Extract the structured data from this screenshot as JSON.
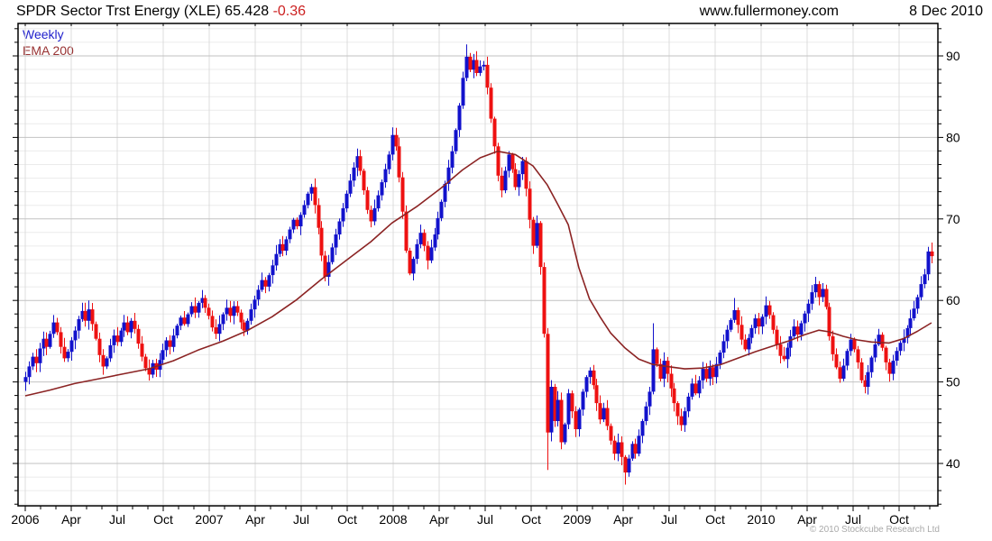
{
  "header": {
    "title_main": "SPDR Sector Trst Energy (XLE) 65.428",
    "change": "-0.36",
    "site": "www.fullermoney.com",
    "date": "8 Dec 2010"
  },
  "legend": {
    "series": "Weekly",
    "overlay": "EMA 200"
  },
  "footer": {
    "copyright": "© 2010 Stockcube Research Ltd"
  },
  "colors": {
    "up": "#1212cc",
    "down": "#ee1111",
    "ema": "#8b2323",
    "grid_minor": "#ebebeb",
    "grid_major": "#c2c2c2",
    "grid_vert": "#dcdcdc",
    "axis": "#000000",
    "label": "#000000",
    "change_text": "#cc2222",
    "copyright_text": "#aaaaaa"
  },
  "chart_data": {
    "type": "candlestick",
    "title": "SPDR Sector Trst Energy (XLE)",
    "timeframe": "Weekly",
    "overlay": "EMA 200",
    "last_price": 65.428,
    "change": -0.36,
    "date": "8 Dec 2010",
    "ylim": [
      34.8,
      93.98
    ],
    "y_ticks": [
      40,
      50,
      60,
      70,
      80,
      90
    ],
    "y_minor_step": 1.6667,
    "x_labels": [
      "2006",
      "Apr",
      "Jul",
      "Oct",
      "2007",
      "Apr",
      "Jul",
      "Oct",
      "2008",
      "Apr",
      "Jul",
      "Oct",
      "2009",
      "Apr",
      "Jul",
      "Oct",
      "2010",
      "Apr",
      "Jul",
      "Oct"
    ],
    "weeks_per_quarter": 13.0435,
    "weeks_per_month": 4.3478,
    "first_open": 50.0,
    "closes": [
      50.6,
      51.9,
      53.1,
      52.3,
      54.1,
      55.3,
      54.3,
      55.9,
      57.3,
      56.1,
      54.3,
      52.9,
      53.7,
      55.1,
      56.3,
      57.7,
      58.7,
      57.5,
      58.9,
      57.1,
      55.3,
      53.3,
      51.9,
      52.9,
      54.5,
      55.7,
      54.9,
      56.3,
      57.3,
      56.1,
      57.5,
      56.5,
      54.7,
      53.1,
      51.7,
      50.9,
      52.3,
      51.5,
      52.7,
      53.9,
      55.1,
      54.3,
      55.7,
      56.9,
      57.9,
      57.1,
      58.3,
      59.3,
      58.5,
      59.7,
      60.3,
      59.1,
      58.1,
      56.7,
      55.9,
      57.1,
      58.3,
      59.1,
      58.1,
      59.3,
      58.5,
      57.3,
      56.3,
      57.5,
      58.9,
      60.1,
      61.3,
      62.5,
      61.7,
      63.1,
      64.3,
      65.7,
      66.9,
      66.1,
      67.5,
      68.7,
      69.9,
      69.1,
      70.5,
      71.7,
      73.1,
      73.9,
      71.7,
      68.9,
      65.5,
      62.9,
      64.7,
      66.5,
      68.1,
      69.7,
      71.3,
      73.1,
      74.7,
      76.3,
      77.7,
      75.9,
      73.5,
      71.1,
      69.7,
      71.3,
      72.9,
      74.5,
      76.1,
      77.9,
      80.3,
      78.9,
      75.1,
      70.9,
      66.1,
      63.3,
      65.1,
      66.9,
      68.3,
      66.7,
      64.9,
      66.5,
      68.1,
      70.1,
      72.1,
      74.3,
      76.3,
      78.3,
      80.9,
      83.9,
      87.3,
      89.9,
      88.3,
      89.5,
      87.9,
      88.7,
      88.9,
      86.1,
      82.3,
      78.9,
      75.3,
      73.5,
      75.9,
      77.9,
      76.1,
      73.9,
      75.5,
      77.1,
      73.7,
      69.9,
      66.7,
      69.5,
      64.1,
      55.9,
      43.8,
      49.4,
      45.2,
      47.8,
      42.6,
      44.8,
      48.6,
      46.4,
      44.2,
      46.6,
      48.8,
      50.6,
      51.4,
      49.6,
      47.4,
      45.4,
      46.8,
      44.6,
      42.8,
      41.2,
      42.6,
      40.8,
      38.9,
      40.6,
      42.4,
      41.2,
      43.4,
      45.2,
      47.0,
      48.8,
      54.0,
      52.2,
      50.4,
      52.6,
      51.0,
      49.2,
      47.4,
      45.8,
      44.7,
      46.4,
      48.2,
      49.8,
      48.6,
      50.2,
      51.6,
      50.4,
      51.8,
      50.6,
      52.2,
      53.6,
      55.0,
      56.4,
      57.6,
      58.8,
      57.0,
      55.2,
      54.0,
      55.4,
      56.6,
      57.8,
      56.8,
      58.0,
      59.4,
      58.2,
      56.4,
      54.6,
      53.2,
      52.8,
      54.2,
      55.6,
      56.8,
      55.8,
      57.2,
      58.4,
      59.6,
      61.0,
      62.0,
      60.4,
      61.4,
      59.2,
      55.6,
      53.4,
      51.8,
      50.4,
      52.0,
      53.8,
      55.2,
      54.0,
      52.4,
      50.2,
      49.4,
      51.2,
      53.0,
      54.6,
      55.8,
      54.2,
      52.4,
      51.0,
      52.6,
      53.8,
      54.8,
      55.4,
      56.6,
      57.8,
      59.0,
      60.4,
      62.0,
      63.2,
      66.0,
      65.43
    ],
    "wick_overrides": {
      "125": {
        "high": 91.4
      },
      "148": {
        "low": 39.2
      },
      "170": {
        "low": 37.4
      },
      "178": {
        "high": 57.2
      },
      "201": {
        "high": 60.3
      },
      "210": {
        "high": 60.5
      },
      "224": {
        "high": 62.9
      },
      "231": {
        "low": 49.9
      },
      "238": {
        "low": 48.6
      },
      "257": {
        "high": 67.1
      }
    },
    "ema_points": [
      [
        0,
        48.3
      ],
      [
        7,
        49.0
      ],
      [
        14,
        49.8
      ],
      [
        21,
        50.4
      ],
      [
        28,
        51.0
      ],
      [
        35,
        51.6
      ],
      [
        42,
        52.6
      ],
      [
        49,
        53.9
      ],
      [
        56,
        55.0
      ],
      [
        63,
        56.3
      ],
      [
        70,
        58.0
      ],
      [
        77,
        60.1
      ],
      [
        84,
        62.6
      ],
      [
        91,
        64.9
      ],
      [
        98,
        67.2
      ],
      [
        104,
        69.5
      ],
      [
        111,
        71.5
      ],
      [
        118,
        73.8
      ],
      [
        124,
        76.0
      ],
      [
        129,
        77.5
      ],
      [
        134,
        78.3
      ],
      [
        139,
        77.9
      ],
      [
        144,
        76.5
      ],
      [
        148,
        74.2
      ],
      [
        151,
        71.8
      ],
      [
        154,
        69.3
      ],
      [
        157,
        64.0
      ],
      [
        160,
        60.2
      ],
      [
        163,
        58.0
      ],
      [
        166,
        56.0
      ],
      [
        170,
        54.2
      ],
      [
        174,
        52.8
      ],
      [
        178,
        52.15
      ],
      [
        182,
        51.9
      ],
      [
        187,
        51.6
      ],
      [
        192,
        51.7
      ],
      [
        197,
        52.1
      ],
      [
        202,
        52.9
      ],
      [
        207,
        53.7
      ],
      [
        212,
        54.4
      ],
      [
        217,
        55.1
      ],
      [
        221,
        55.8
      ],
      [
        225,
        56.35
      ],
      [
        228,
        56.15
      ],
      [
        232,
        55.6
      ],
      [
        236,
        55.15
      ],
      [
        240,
        54.9
      ],
      [
        245,
        54.78
      ],
      [
        249,
        55.3
      ],
      [
        253,
        56.2
      ],
      [
        257,
        57.25
      ]
    ],
    "seed": 987654321
  }
}
